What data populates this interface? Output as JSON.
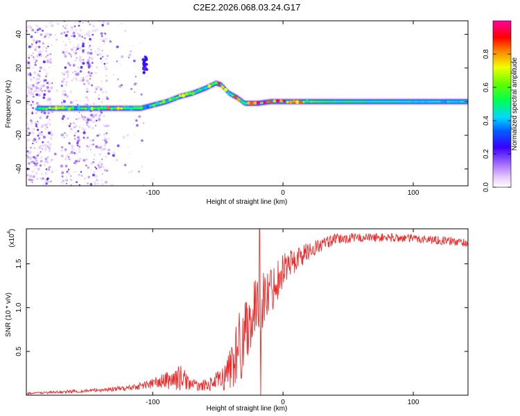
{
  "title": "C2E2.2026.068.03.24.G17",
  "chart_data": [
    {
      "type": "heatmap",
      "description_id": "spectrogram",
      "xlabel": "Height of straight line (km)",
      "ylabel": "Frequency (Hz)",
      "xlim": [
        -197,
        142
      ],
      "ylim": [
        -50,
        48
      ],
      "xticks": [
        -100,
        0,
        100
      ],
      "yticks": [
        -40,
        -20,
        0,
        20,
        40
      ],
      "colorbar": {
        "label": "Normalized spectral amplitude",
        "range": [
          0,
          1
        ],
        "ticks": [
          0.0,
          0.2,
          0.4,
          0.6,
          0.8
        ],
        "tick_labels": [
          "0.0",
          "0.2",
          "0.4",
          "0.6",
          "0.8"
        ]
      },
      "ridge": {
        "x": [
          -188,
          -175,
          -160,
          -140,
          -125,
          -110,
          -100,
          -90,
          -80,
          -70,
          -60,
          -52,
          -48,
          -42,
          -35,
          -30,
          -20,
          -10,
          0,
          15,
          40,
          80,
          120,
          142
        ],
        "freq": [
          -4,
          -4,
          -4,
          -4,
          -4,
          -4,
          -2,
          0,
          3,
          5,
          8,
          11,
          10,
          5,
          2,
          -1,
          -1,
          0,
          0,
          0,
          0,
          0,
          0,
          0
        ],
        "amp": [
          0.5,
          0.7,
          0.5,
          0.6,
          0.75,
          0.4,
          0.55,
          0.5,
          0.65,
          0.6,
          0.55,
          0.7,
          0.85,
          0.6,
          0.8,
          0.6,
          0.85,
          0.9,
          0.85,
          0.65,
          0.5,
          0.45,
          0.42,
          0.45
        ]
      }
    },
    {
      "type": "line",
      "description_id": "snr",
      "xlabel": "Height of straight line (km)",
      "ylabel": "SNR (10 * v/v)",
      "y_multiplier_label": "(x10",
      "y_multiplier_exp": "4",
      "xlim": [
        -197,
        142
      ],
      "ylim": [
        0,
        1.9
      ],
      "xticks": [
        -100,
        0,
        100
      ],
      "yticks": [
        0.5,
        1.0,
        1.5
      ],
      "ytick_labels": [
        "0.5",
        "1.0",
        "1.5"
      ],
      "color": "#ee2a2a",
      "envelope": {
        "x": [
          -197,
          -150,
          -120,
          -105,
          -95,
          -85,
          -78,
          -72,
          -65,
          -55,
          -45,
          -38,
          -32,
          -28,
          -22,
          -17,
          -12,
          -5,
          0,
          10,
          20,
          30,
          40,
          60,
          80,
          100,
          120,
          142
        ],
        "base": [
          0.02,
          0.05,
          0.08,
          0.12,
          0.15,
          0.18,
          0.2,
          0.14,
          0.1,
          0.13,
          0.2,
          0.4,
          0.6,
          0.8,
          0.95,
          1.05,
          1.15,
          1.3,
          1.45,
          1.55,
          1.65,
          1.72,
          1.78,
          1.8,
          1.8,
          1.79,
          1.77,
          1.74
        ],
        "amp": [
          0.01,
          0.02,
          0.03,
          0.05,
          0.08,
          0.12,
          0.15,
          0.08,
          0.05,
          0.08,
          0.15,
          0.35,
          0.45,
          0.4,
          0.35,
          0.35,
          0.3,
          0.25,
          0.2,
          0.15,
          0.1,
          0.08,
          0.06,
          0.05,
          0.05,
          0.05,
          0.05,
          0.05
        ]
      },
      "spikes": [
        {
          "x": -18,
          "y": 1.9
        },
        {
          "x": -17,
          "y": 0.0
        }
      ]
    }
  ]
}
